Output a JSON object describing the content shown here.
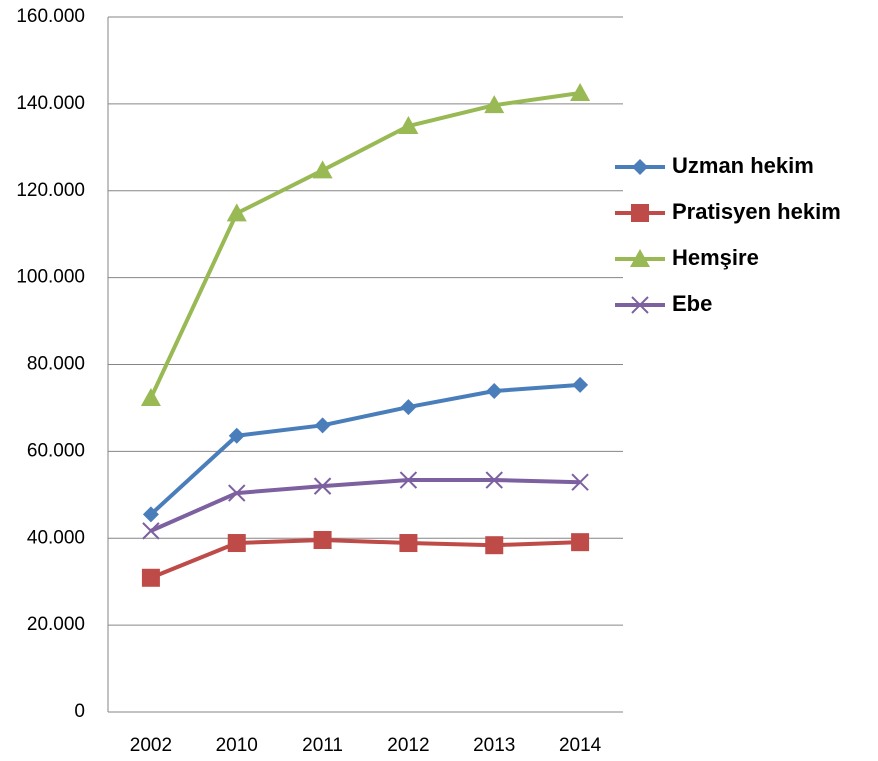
{
  "chart_data": {
    "type": "line",
    "categories": [
      "2002",
      "2010",
      "2011",
      "2012",
      "2013",
      "2014"
    ],
    "series": [
      {
        "name": "Uzman hekim",
        "color": "#4a7ebb",
        "marker": "diamond",
        "values": [
          45500,
          63600,
          66000,
          70200,
          73900,
          75300
        ]
      },
      {
        "name": "Pratisyen hekim",
        "color": "#be4b48",
        "marker": "square",
        "values": [
          30900,
          38900,
          39600,
          38900,
          38400,
          39100
        ]
      },
      {
        "name": "Hemşire",
        "color": "#98b954",
        "marker": "triangle",
        "values": [
          72300,
          114800,
          124700,
          134900,
          139700,
          142500
        ]
      },
      {
        "name": "Ebe",
        "color": "#7d60a0",
        "marker": "x",
        "values": [
          41700,
          50400,
          52000,
          53400,
          53400,
          52900
        ]
      }
    ],
    "ylim": [
      0,
      160000
    ],
    "yticks": [
      0,
      {
        "value": 20000,
        "label": "20.000"
      },
      {
        "value": 40000,
        "label": "40.000"
      },
      {
        "value": 60000,
        "label": "60.000"
      },
      {
        "value": 80000,
        "label": "80.000"
      },
      {
        "value": 100000,
        "label": "100.000"
      },
      {
        "value": 120000,
        "label": "120.000"
      },
      {
        "value": 140000,
        "label": "140.000"
      },
      {
        "value": 160000,
        "label": "160.000"
      }
    ],
    "grid": true,
    "legend": "right"
  }
}
